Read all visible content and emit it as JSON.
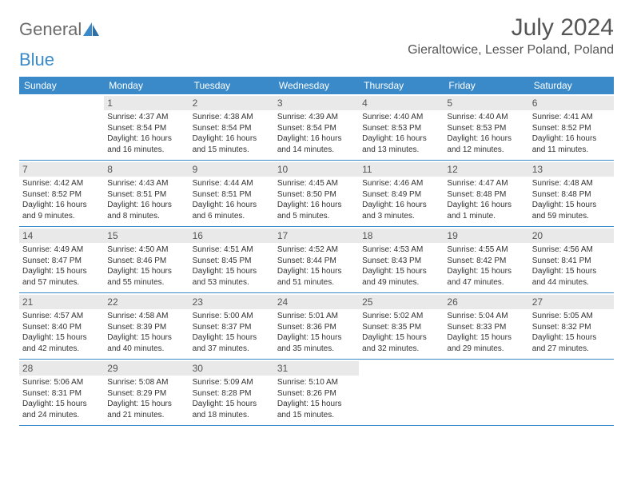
{
  "brand": {
    "part1": "General",
    "part2": "Blue"
  },
  "title": "July 2024",
  "location": "Gieraltowice, Lesser Poland, Poland",
  "colors": {
    "header_bg": "#3a8ac9",
    "header_text": "#ffffff",
    "daynum_bg": "#e9e9e9",
    "text": "#333333",
    "title_text": "#555555",
    "border": "#3a8ac9",
    "logo_gray": "#6b6b6b",
    "logo_blue": "#3a8ac9"
  },
  "day_headers": [
    "Sunday",
    "Monday",
    "Tuesday",
    "Wednesday",
    "Thursday",
    "Friday",
    "Saturday"
  ],
  "weeks": [
    [
      {
        "empty": true
      },
      {
        "num": "1",
        "sunrise": "4:37 AM",
        "sunset": "8:54 PM",
        "daylight": "16 hours and 16 minutes."
      },
      {
        "num": "2",
        "sunrise": "4:38 AM",
        "sunset": "8:54 PM",
        "daylight": "16 hours and 15 minutes."
      },
      {
        "num": "3",
        "sunrise": "4:39 AM",
        "sunset": "8:54 PM",
        "daylight": "16 hours and 14 minutes."
      },
      {
        "num": "4",
        "sunrise": "4:40 AM",
        "sunset": "8:53 PM",
        "daylight": "16 hours and 13 minutes."
      },
      {
        "num": "5",
        "sunrise": "4:40 AM",
        "sunset": "8:53 PM",
        "daylight": "16 hours and 12 minutes."
      },
      {
        "num": "6",
        "sunrise": "4:41 AM",
        "sunset": "8:52 PM",
        "daylight": "16 hours and 11 minutes."
      }
    ],
    [
      {
        "num": "7",
        "sunrise": "4:42 AM",
        "sunset": "8:52 PM",
        "daylight": "16 hours and 9 minutes."
      },
      {
        "num": "8",
        "sunrise": "4:43 AM",
        "sunset": "8:51 PM",
        "daylight": "16 hours and 8 minutes."
      },
      {
        "num": "9",
        "sunrise": "4:44 AM",
        "sunset": "8:51 PM",
        "daylight": "16 hours and 6 minutes."
      },
      {
        "num": "10",
        "sunrise": "4:45 AM",
        "sunset": "8:50 PM",
        "daylight": "16 hours and 5 minutes."
      },
      {
        "num": "11",
        "sunrise": "4:46 AM",
        "sunset": "8:49 PM",
        "daylight": "16 hours and 3 minutes."
      },
      {
        "num": "12",
        "sunrise": "4:47 AM",
        "sunset": "8:48 PM",
        "daylight": "16 hours and 1 minute."
      },
      {
        "num": "13",
        "sunrise": "4:48 AM",
        "sunset": "8:48 PM",
        "daylight": "15 hours and 59 minutes."
      }
    ],
    [
      {
        "num": "14",
        "sunrise": "4:49 AM",
        "sunset": "8:47 PM",
        "daylight": "15 hours and 57 minutes."
      },
      {
        "num": "15",
        "sunrise": "4:50 AM",
        "sunset": "8:46 PM",
        "daylight": "15 hours and 55 minutes."
      },
      {
        "num": "16",
        "sunrise": "4:51 AM",
        "sunset": "8:45 PM",
        "daylight": "15 hours and 53 minutes."
      },
      {
        "num": "17",
        "sunrise": "4:52 AM",
        "sunset": "8:44 PM",
        "daylight": "15 hours and 51 minutes."
      },
      {
        "num": "18",
        "sunrise": "4:53 AM",
        "sunset": "8:43 PM",
        "daylight": "15 hours and 49 minutes."
      },
      {
        "num": "19",
        "sunrise": "4:55 AM",
        "sunset": "8:42 PM",
        "daylight": "15 hours and 47 minutes."
      },
      {
        "num": "20",
        "sunrise": "4:56 AM",
        "sunset": "8:41 PM",
        "daylight": "15 hours and 44 minutes."
      }
    ],
    [
      {
        "num": "21",
        "sunrise": "4:57 AM",
        "sunset": "8:40 PM",
        "daylight": "15 hours and 42 minutes."
      },
      {
        "num": "22",
        "sunrise": "4:58 AM",
        "sunset": "8:39 PM",
        "daylight": "15 hours and 40 minutes."
      },
      {
        "num": "23",
        "sunrise": "5:00 AM",
        "sunset": "8:37 PM",
        "daylight": "15 hours and 37 minutes."
      },
      {
        "num": "24",
        "sunrise": "5:01 AM",
        "sunset": "8:36 PM",
        "daylight": "15 hours and 35 minutes."
      },
      {
        "num": "25",
        "sunrise": "5:02 AM",
        "sunset": "8:35 PM",
        "daylight": "15 hours and 32 minutes."
      },
      {
        "num": "26",
        "sunrise": "5:04 AM",
        "sunset": "8:33 PM",
        "daylight": "15 hours and 29 minutes."
      },
      {
        "num": "27",
        "sunrise": "5:05 AM",
        "sunset": "8:32 PM",
        "daylight": "15 hours and 27 minutes."
      }
    ],
    [
      {
        "num": "28",
        "sunrise": "5:06 AM",
        "sunset": "8:31 PM",
        "daylight": "15 hours and 24 minutes."
      },
      {
        "num": "29",
        "sunrise": "5:08 AM",
        "sunset": "8:29 PM",
        "daylight": "15 hours and 21 minutes."
      },
      {
        "num": "30",
        "sunrise": "5:09 AM",
        "sunset": "8:28 PM",
        "daylight": "15 hours and 18 minutes."
      },
      {
        "num": "31",
        "sunrise": "5:10 AM",
        "sunset": "8:26 PM",
        "daylight": "15 hours and 15 minutes."
      },
      {
        "empty": true
      },
      {
        "empty": true
      },
      {
        "empty": true
      }
    ]
  ]
}
